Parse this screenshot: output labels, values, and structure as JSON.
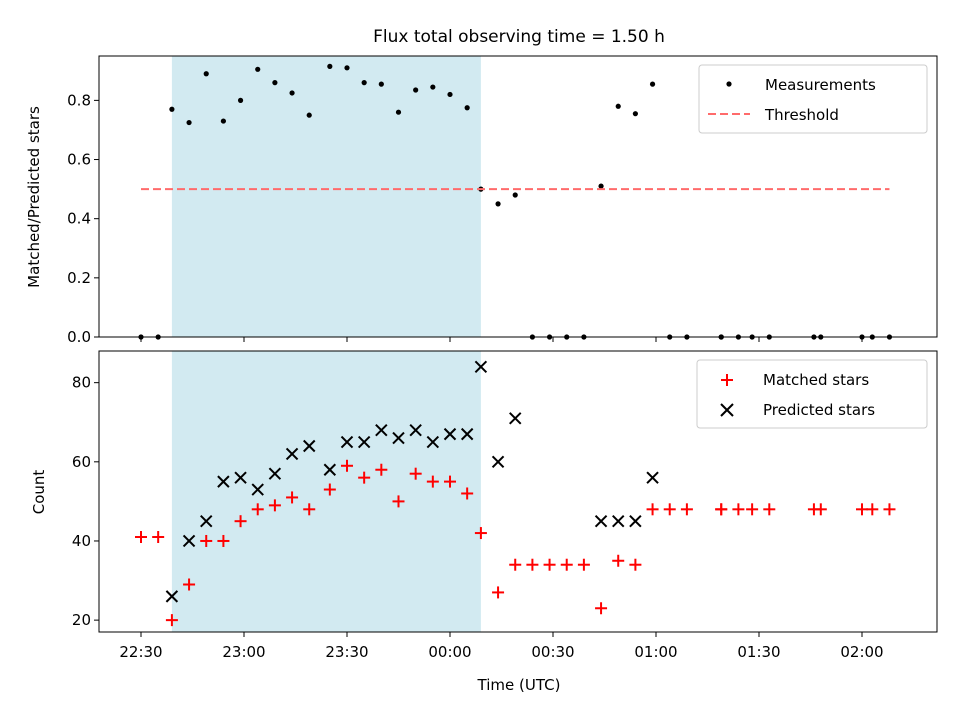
{
  "title": "Flux total observing time = 1.50 h",
  "xlabel": "Time (UTC)",
  "xticks": [
    {
      "t": -30,
      "label": "22:30"
    },
    {
      "t": 0,
      "label": "23:00"
    },
    {
      "t": 30,
      "label": "23:30"
    },
    {
      "t": 60,
      "label": "00:00"
    },
    {
      "t": 90,
      "label": "00:30"
    },
    {
      "t": 120,
      "label": "01:00"
    },
    {
      "t": 150,
      "label": "01:30"
    },
    {
      "t": 180,
      "label": "02:00"
    }
  ],
  "shaded_region": {
    "from": "22:39",
    "to": "00:09",
    "color": "#add8e6"
  },
  "colors": {
    "measurement": "#000000",
    "threshold": "#ff6b6b",
    "matched": "#ff0000",
    "predicted": "#000000",
    "shade": "#add8e6"
  },
  "chart_data": [
    {
      "type": "scatter",
      "ylabel": "Matched/Predicted stars",
      "ylim": [
        0,
        0.95
      ],
      "yticks": [
        0.0,
        0.2,
        0.4,
        0.6,
        0.8
      ],
      "legend": {
        "position": "top-right"
      },
      "series": [
        {
          "name": "Measurements",
          "marker": "dot",
          "x": [
            "22:30",
            "22:35",
            "22:39",
            "22:44",
            "22:49",
            "22:54",
            "22:59",
            "23:04",
            "23:09",
            "23:14",
            "23:19",
            "23:25",
            "23:30",
            "23:35",
            "23:40",
            "23:45",
            "23:50",
            "23:55",
            "00:00",
            "00:05",
            "00:09",
            "00:14",
            "00:19",
            "00:24",
            "00:29",
            "00:34",
            "00:39",
            "00:44",
            "00:49",
            "00:54",
            "00:59",
            "01:04",
            "01:09",
            "01:19",
            "01:19",
            "01:24",
            "01:28",
            "01:33",
            "01:46",
            "01:48",
            "02:00",
            "02:03",
            "02:08"
          ],
          "y": [
            0.0,
            0.0,
            0.77,
            0.725,
            0.89,
            0.73,
            0.8,
            0.905,
            0.86,
            0.825,
            0.75,
            0.915,
            0.91,
            0.86,
            0.855,
            0.76,
            0.835,
            0.845,
            0.82,
            0.775,
            0.5,
            0.45,
            0.48,
            0.0,
            0.0,
            0.0,
            0.0,
            0.51,
            0.78,
            0.755,
            0.855,
            0.0,
            0.0,
            0.0,
            0.0,
            0.0,
            0.0,
            0.0,
            0.0,
            0.0,
            0.0,
            0.0,
            0.0
          ]
        },
        {
          "name": "Threshold",
          "style": "dashed",
          "x": [
            "22:30",
            "02:08"
          ],
          "y": [
            0.5,
            0.5
          ]
        }
      ]
    },
    {
      "type": "scatter",
      "ylabel": "Count",
      "ylim": [
        17,
        88
      ],
      "yticks": [
        20,
        40,
        60,
        80
      ],
      "legend": {
        "position": "top-right"
      },
      "series": [
        {
          "name": "Matched stars",
          "marker": "plus",
          "x": [
            "22:30",
            "22:35",
            "22:39",
            "22:44",
            "22:49",
            "22:54",
            "22:59",
            "23:04",
            "23:09",
            "23:14",
            "23:19",
            "23:25",
            "23:30",
            "23:35",
            "23:40",
            "23:45",
            "23:50",
            "23:55",
            "00:00",
            "00:05",
            "00:09",
            "00:14",
            "00:19",
            "00:24",
            "00:29",
            "00:34",
            "00:39",
            "00:44",
            "00:49",
            "00:54",
            "00:59",
            "01:04",
            "01:09",
            "01:19",
            "01:19",
            "01:24",
            "01:28",
            "01:33",
            "01:46",
            "01:48",
            "02:00",
            "02:03",
            "02:08"
          ],
          "y": [
            41,
            41,
            20,
            29,
            40,
            40,
            45,
            48,
            49,
            51,
            48,
            53,
            59,
            56,
            58,
            50,
            57,
            55,
            55,
            52,
            42,
            27,
            34,
            34,
            34,
            34,
            34,
            23,
            35,
            34,
            48,
            48,
            48,
            48,
            48,
            48,
            48,
            48,
            48,
            48,
            48,
            48,
            48
          ]
        },
        {
          "name": "Predicted stars",
          "marker": "x",
          "x": [
            "22:39",
            "22:44",
            "22:49",
            "22:54",
            "22:59",
            "23:04",
            "23:09",
            "23:14",
            "23:19",
            "23:25",
            "23:30",
            "23:35",
            "23:40",
            "23:45",
            "23:50",
            "23:55",
            "00:00",
            "00:05",
            "00:09",
            "00:14",
            "00:19",
            "00:44",
            "00:49",
            "00:54",
            "00:59"
          ],
          "y": [
            26,
            40,
            45,
            55,
            56,
            53,
            57,
            62,
            64,
            58,
            65,
            65,
            68,
            66,
            68,
            65,
            67,
            67,
            84,
            60,
            71,
            45,
            45,
            45,
            56
          ]
        }
      ]
    }
  ]
}
